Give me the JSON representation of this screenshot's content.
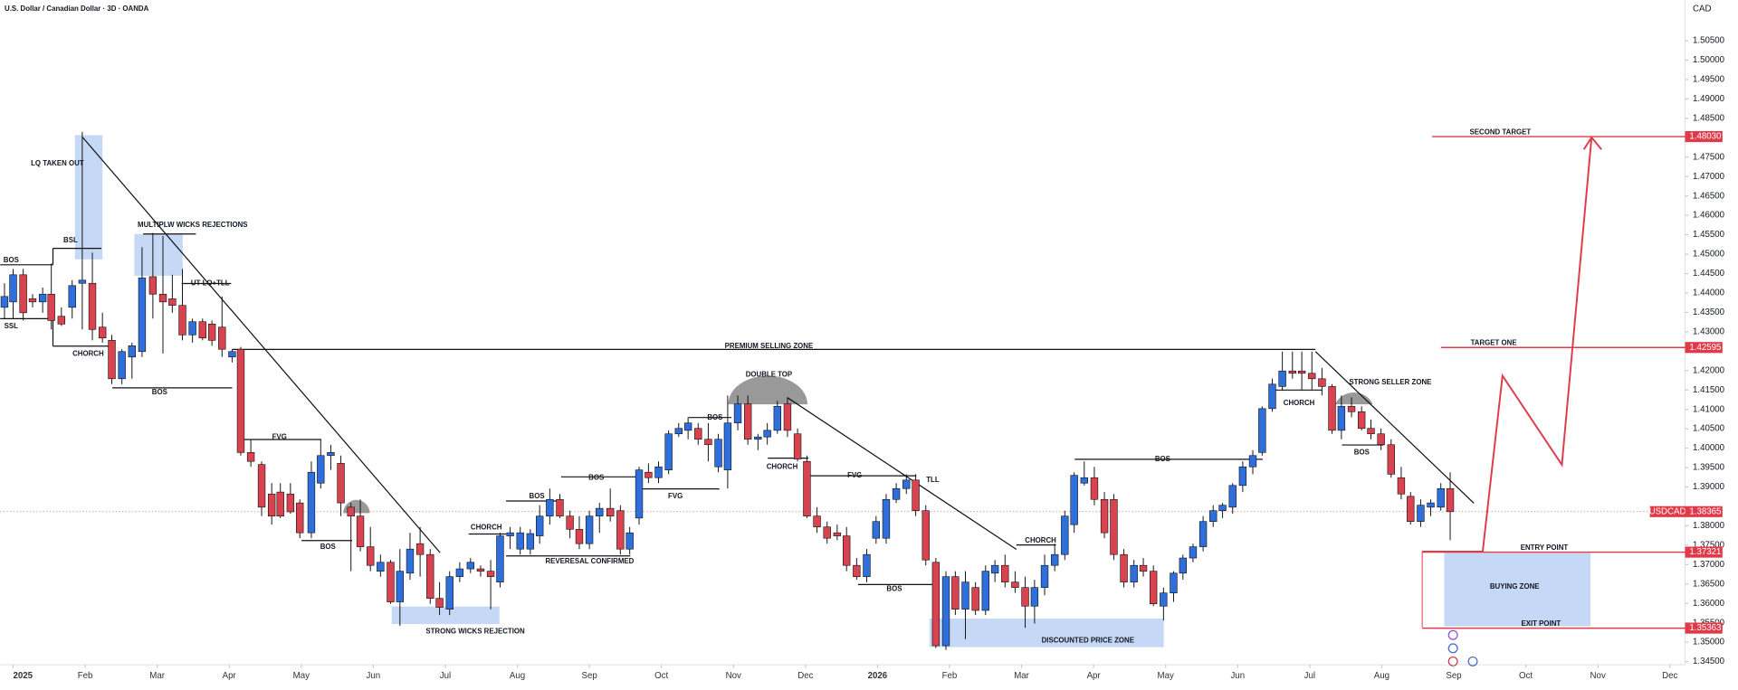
{
  "header": {
    "title": "U.S. Dollar / Canadian Dollar · 3D · OANDA",
    "currency": "CAD"
  },
  "chart_data": {
    "type": "candlestick",
    "up_color": "#2f6fdc",
    "down_color": "#d9434f",
    "xlim": [
      -0.18,
      23.18
    ],
    "xticks": [
      {
        "value": 0,
        "label": "2025"
      },
      {
        "value": 1,
        "label": "Feb"
      },
      {
        "value": 2,
        "label": "Mar"
      },
      {
        "value": 3,
        "label": "Apr"
      },
      {
        "value": 4,
        "label": "May"
      },
      {
        "value": 5,
        "label": "Jun"
      },
      {
        "value": 6,
        "label": "Jul"
      },
      {
        "value": 7,
        "label": "Aug"
      },
      {
        "value": 8,
        "label": "Sep"
      },
      {
        "value": 9,
        "label": "Oct"
      },
      {
        "value": 10,
        "label": "Nov"
      },
      {
        "value": 11,
        "label": "Dec"
      },
      {
        "value": 12,
        "label": "2026"
      },
      {
        "value": 13,
        "label": "Feb"
      },
      {
        "value": 14,
        "label": "Mar"
      },
      {
        "value": 15,
        "label": "Apr"
      },
      {
        "value": 16,
        "label": "May"
      },
      {
        "value": 17,
        "label": "Jun"
      },
      {
        "value": 18,
        "label": "Jul"
      },
      {
        "value": 19,
        "label": "Aug"
      },
      {
        "value": 20,
        "label": "Sep"
      },
      {
        "value": 21,
        "label": "Oct"
      },
      {
        "value": 22,
        "label": "Nov"
      },
      {
        "value": 23,
        "label": "Dec"
      }
    ],
    "ylim": [
      1.3442,
      1.5155
    ],
    "yticks": [
      {
        "value": 1.345,
        "label": "1.34500"
      },
      {
        "value": 1.35,
        "label": "1.35000"
      },
      {
        "value": 1.355,
        "label": "1.35500"
      },
      {
        "value": 1.36,
        "label": "1.36000"
      },
      {
        "value": 1.365,
        "label": "1.36500"
      },
      {
        "value": 1.37,
        "label": "1.37000"
      },
      {
        "value": 1.375,
        "label": "1.37500"
      },
      {
        "value": 1.38,
        "label": "1.38000"
      },
      {
        "value": 1.39,
        "label": "1.39000"
      },
      {
        "value": 1.395,
        "label": "1.39500"
      },
      {
        "value": 1.4,
        "label": "1.40000"
      },
      {
        "value": 1.405,
        "label": "1.40500"
      },
      {
        "value": 1.41,
        "label": "1.41000"
      },
      {
        "value": 1.415,
        "label": "1.41500"
      },
      {
        "value": 1.42,
        "label": "1.42000"
      },
      {
        "value": 1.43,
        "label": "1.43000"
      },
      {
        "value": 1.435,
        "label": "1.43500"
      },
      {
        "value": 1.44,
        "label": "1.44000"
      },
      {
        "value": 1.445,
        "label": "1.44500"
      },
      {
        "value": 1.45,
        "label": "1.45000"
      },
      {
        "value": 1.455,
        "label": "1.45500"
      },
      {
        "value": 1.46,
        "label": "1.46000"
      },
      {
        "value": 1.465,
        "label": "1.46500"
      },
      {
        "value": 1.47,
        "label": "1.47000"
      },
      {
        "value": 1.475,
        "label": "1.47500"
      },
      {
        "value": 1.485,
        "label": "1.48500"
      },
      {
        "value": 1.49,
        "label": "1.49000"
      },
      {
        "value": 1.495,
        "label": "1.49500"
      },
      {
        "value": 1.5,
        "label": "1.50000"
      },
      {
        "value": 1.505,
        "label": "1.50500"
      }
    ],
    "x": [
      -0.12,
      0,
      0.14,
      0.27,
      0.41,
      0.53,
      0.67,
      0.82,
      0.96,
      1.1,
      1.24,
      1.37,
      1.51,
      1.65,
      1.79,
      1.94,
      2.08,
      2.21,
      2.35,
      2.49,
      2.63,
      2.76,
      2.9,
      3.04,
      3.16,
      3.3,
      3.45,
      3.59,
      3.71,
      3.85,
      3.98,
      4.14,
      4.27,
      4.41,
      4.55,
      4.69,
      4.82,
      4.96,
      5.1,
      5.24,
      5.37,
      5.51,
      5.65,
      5.79,
      5.92,
      6.06,
      6.2,
      6.35,
      6.49,
      6.63,
      6.76,
      6.9,
      7.04,
      7.18,
      7.31,
      7.45,
      7.59,
      7.73,
      7.86,
      8,
      8.14,
      8.29,
      8.43,
      8.56,
      8.69,
      8.82,
      8.96,
      9.1,
      9.24,
      9.37,
      9.51,
      9.65,
      9.79,
      9.92,
      10.06,
      10.2,
      10.34,
      10.47,
      10.61,
      10.75,
      10.89,
      11.02,
      11.16,
      11.3,
      11.44,
      11.57,
      11.71,
      11.85,
      11.98,
      12.12,
      12.26,
      12.4,
      12.53,
      12.67,
      12.81,
      12.95,
      13.08,
      13.22,
      13.36,
      13.5,
      13.63,
      13.77,
      13.91,
      14.05,
      14.18,
      14.32,
      14.46,
      14.6,
      14.73,
      14.87,
      15.01,
      15.15,
      15.28,
      15.42,
      15.56,
      15.69,
      15.83,
      15.97,
      16.11,
      16.24,
      16.38,
      16.52,
      16.66,
      16.79,
      16.93,
      17.07,
      17.21,
      17.34,
      17.48,
      17.62,
      17.76,
      17.89,
      18.03,
      18.17,
      18.31,
      18.44,
      18.58,
      18.72,
      18.85,
      18.99,
      19.13,
      19.27,
      19.4,
      19.54,
      19.68,
      19.82,
      19.95
    ],
    "open": [
      1.4363,
      1.4377,
      1.4447,
      1.4385,
      1.4377,
      1.4397,
      1.434,
      1.4363,
      1.4425,
      1.4425,
      1.4312,
      1.4278,
      1.4179,
      1.4235,
      1.4249,
      1.4442,
      1.4397,
      1.4385,
      1.4368,
      1.4292,
      1.4326,
      1.432,
      1.4312,
      1.4235,
      1.4255,
      1.3989,
      1.3958,
      1.3882,
      1.3887,
      1.3882,
      1.3859,
      1.3782,
      1.391,
      1.3981,
      1.3961,
      1.3848,
      1.3825,
      1.3746,
      1.3683,
      1.3706,
      1.3604,
      1.3678,
      1.3754,
      1.3726,
      1.3613,
      1.3585,
      1.3669,
      1.3689,
      1.3689,
      1.3683,
      1.3655,
      1.3774,
      1.374,
      1.374,
      1.3774,
      1.3825,
      1.3868,
      1.3825,
      1.3791,
      1.3754,
      1.3825,
      1.3845,
      1.3839,
      1.374,
      1.382,
      1.3938,
      1.3924,
      1.3944,
      1.4037,
      1.4046,
      1.4051,
      1.4023,
      1.3952,
      1.3944,
      1.4065,
      1.4114,
      1.4023,
      1.4029,
      1.4046,
      1.4114,
      1.4037,
      1.3966,
      1.3825,
      1.3797,
      1.3782,
      1.3774,
      1.3698,
      1.3669,
      1.3768,
      1.3768,
      1.3868,
      1.3896,
      1.3918,
      1.3839,
      1.3706,
      1.3491,
      1.3669,
      1.3585,
      1.3641,
      1.3582,
      1.3678,
      1.3698,
      1.3655,
      1.3641,
      1.3593,
      1.3641,
      1.3698,
      1.3726,
      1.3803,
      1.391,
      1.3924,
      1.3868,
      1.3868,
      1.3726,
      1.3655,
      1.3698,
      1.3683,
      1.3593,
      1.3627,
      1.3678,
      1.3717,
      1.3746,
      1.3811,
      1.3839,
      1.3848,
      1.3904,
      1.3952,
      1.3989,
      1.4102,
      1.4159,
      1.4199,
      1.4199,
      1.4193,
      1.4179,
      1.4159,
      1.4046,
      1.4108,
      1.4094,
      1.4051,
      1.4037,
      1.4009,
      1.3924,
      1.3876,
      1.3811,
      1.3848,
      1.3848,
      1.3896
    ],
    "high": [
      1.4425,
      1.4462,
      1.4462,
      1.4397,
      1.4414,
      1.4476,
      1.4363,
      1.4433,
      1.4815,
      1.4504,
      1.4349,
      1.4292,
      1.4255,
      1.4272,
      1.4518,
      1.4555,
      1.4547,
      1.4447,
      1.4462,
      1.4334,
      1.4334,
      1.4329,
      1.4391,
      1.4255,
      1.4261,
      1.4023,
      1.3966,
      1.391,
      1.391,
      1.391,
      1.3868,
      1.3966,
      1.4023,
      1.4009,
      1.3981,
      1.3859,
      1.3868,
      1.3797,
      1.3726,
      1.3712,
      1.374,
      1.3782,
      1.3797,
      1.374,
      1.3655,
      1.3683,
      1.3706,
      1.3717,
      1.3698,
      1.3712,
      1.3782,
      1.3797,
      1.3797,
      1.3791,
      1.3853,
      1.3896,
      1.3882,
      1.3839,
      1.3825,
      1.3839,
      1.3859,
      1.3896,
      1.3853,
      1.3797,
      1.3952,
      1.3961,
      1.3966,
      1.4046,
      1.4065,
      1.408,
      1.4065,
      1.4065,
      1.4037,
      1.4136,
      1.4136,
      1.4136,
      1.4037,
      1.4065,
      1.4122,
      1.4131,
      1.4051,
      1.3981,
      1.3848,
      1.3811,
      1.3803,
      1.3797,
      1.3717,
      1.374,
      1.3825,
      1.3882,
      1.391,
      1.3933,
      1.3933,
      1.3853,
      1.3717,
      1.3683,
      1.3683,
      1.3683,
      1.3655,
      1.3698,
      1.3712,
      1.3726,
      1.3683,
      1.3669,
      1.3661,
      1.3726,
      1.3754,
      1.3839,
      1.3938,
      1.3966,
      1.3952,
      1.3887,
      1.3882,
      1.374,
      1.3712,
      1.3717,
      1.3698,
      1.3641,
      1.3683,
      1.3726,
      1.3754,
      1.3825,
      1.3853,
      1.3859,
      1.391,
      1.3966,
      1.3995,
      1.4108,
      1.4179,
      1.4249,
      1.4249,
      1.4249,
      1.4249,
      1.4207,
      1.4165,
      1.4136,
      1.4131,
      1.4108,
      1.4074,
      1.4051,
      1.4023,
      1.3952,
      1.3887,
      1.3868,
      1.3868,
      1.391,
      1.3938
    ],
    "low": [
      1.4334,
      1.4334,
      1.4329,
      1.4363,
      1.4349,
      1.4306,
      1.4315,
      1.4334,
      1.4306,
      1.4278,
      1.4272,
      1.4165,
      1.4165,
      1.4179,
      1.4235,
      1.4334,
      1.4244,
      1.4349,
      1.4278,
      1.4272,
      1.4278,
      1.4264,
      1.4235,
      1.4221,
      1.3981,
      1.3952,
      1.3825,
      1.3803,
      1.382,
      1.3831,
      1.3768,
      1.3768,
      1.3896,
      1.3944,
      1.3825,
      1.3683,
      1.3734,
      1.3683,
      1.3669,
      1.3599,
      1.3542,
      1.3661,
      1.3669,
      1.3599,
      1.357,
      1.357,
      1.3655,
      1.3678,
      1.3669,
      1.3585,
      1.3641,
      1.374,
      1.3726,
      1.3726,
      1.3754,
      1.3803,
      1.382,
      1.3768,
      1.374,
      1.374,
      1.3782,
      1.3811,
      1.3726,
      1.3726,
      1.3803,
      1.391,
      1.391,
      1.3933,
      1.4029,
      1.4023,
      1.4009,
      1.3966,
      1.3938,
      1.3896,
      1.4046,
      1.4009,
      1.3995,
      1.4009,
      1.4037,
      1.4029,
      1.3966,
      1.382,
      1.3782,
      1.3754,
      1.3763,
      1.3683,
      1.3661,
      1.3655,
      1.3754,
      1.3754,
      1.3859,
      1.3882,
      1.3825,
      1.3698,
      1.3485,
      1.348,
      1.357,
      1.3508,
      1.357,
      1.357,
      1.3655,
      1.3641,
      1.3627,
      1.3537,
      1.3548,
      1.3621,
      1.3683,
      1.3712,
      1.3782,
      1.3904,
      1.3853,
      1.3768,
      1.3712,
      1.3641,
      1.3641,
      1.3669,
      1.3593,
      1.3556,
      1.3604,
      1.3661,
      1.3706,
      1.3734,
      1.3797,
      1.382,
      1.3831,
      1.3887,
      1.3933,
      1.3981,
      1.4094,
      1.4148,
      1.4179,
      1.4151,
      1.4151,
      1.4136,
      1.4037,
      1.4023,
      1.408,
      1.4046,
      1.4023,
      1.3995,
      1.3924,
      1.3868,
      1.3803,
      1.3797,
      1.3825,
      1.3839,
      1.3763
    ],
    "close": [
      1.4391,
      1.4447,
      1.4349,
      1.4377,
      1.4397,
      1.4329,
      1.432,
      1.4419,
      1.4433,
      1.4306,
      1.4284,
      1.4179,
      1.4249,
      1.4264,
      1.4439,
      1.4397,
      1.4377,
      1.4368,
      1.4292,
      1.4326,
      1.4284,
      1.4278,
      1.4255,
      1.4249,
      1.3989,
      1.3966,
      1.3848,
      1.3825,
      1.3825,
      1.3836,
      1.3782,
      1.3938,
      1.3981,
      1.3989,
      1.3859,
      1.3825,
      1.3746,
      1.3698,
      1.3706,
      1.3604,
      1.3683,
      1.374,
      1.3726,
      1.3613,
      1.359,
      1.3669,
      1.3689,
      1.3706,
      1.3683,
      1.3669,
      1.3774,
      1.3782,
      1.3782,
      1.378,
      1.3825,
      1.3868,
      1.3825,
      1.3791,
      1.3754,
      1.3825,
      1.3845,
      1.3825,
      1.374,
      1.3782,
      1.3944,
      1.3924,
      1.3952,
      1.4037,
      1.4051,
      1.4065,
      1.4023,
      1.4009,
      1.4023,
      1.4065,
      1.4114,
      1.4023,
      1.4029,
      1.4046,
      1.4108,
      1.4046,
      1.3972,
      1.3825,
      1.3797,
      1.3768,
      1.3774,
      1.3698,
      1.3669,
      1.3726,
      1.3811,
      1.3868,
      1.3896,
      1.3918,
      1.3839,
      1.3712,
      1.3491,
      1.3669,
      1.3585,
      1.3655,
      1.3582,
      1.3683,
      1.3698,
      1.3655,
      1.3641,
      1.3593,
      1.3641,
      1.3698,
      1.3726,
      1.3825,
      1.393,
      1.3924,
      1.3868,
      1.3782,
      1.3726,
      1.3655,
      1.3698,
      1.3683,
      1.3599,
      1.3627,
      1.3678,
      1.3717,
      1.3746,
      1.3811,
      1.3839,
      1.3853,
      1.3904,
      1.3952,
      1.3981,
      1.4102,
      1.4165,
      1.4199,
      1.4193,
      1.4193,
      1.4179,
      1.4159,
      1.4046,
      1.4108,
      1.4094,
      1.4051,
      1.4037,
      1.4009,
      1.3933,
      1.3882,
      1.3811,
      1.3853,
      1.3859,
      1.3896,
      1.38365
    ],
    "current": {
      "symbol": "USDCAD",
      "value": 1.38365,
      "value_label": "1.38365"
    },
    "levels": [
      {
        "text": "SECOND TARGET",
        "value": 1.4803,
        "value_label": "1.48030"
      },
      {
        "text": "TARGET ONE",
        "value": 1.42595,
        "value_label": "1.42595"
      },
      {
        "text": "ENTRY POINT",
        "value": 1.37321,
        "value_label": "1.37321"
      },
      {
        "text": "EXIT POINT",
        "value": 1.35363,
        "value_label": "1.35363"
      }
    ],
    "annotations": [
      "LQ TAKEN OUT",
      "BSL",
      "BOS",
      "SSL",
      "CHORCH",
      "MULTIPLW WICKS REJECTIONS",
      "UT LQ+TLL",
      "BOS",
      "FVG",
      "BOS",
      "STRONG WICKS REJECTION",
      "CHORCH",
      "BOS",
      "REVERESAL CONFIRMED",
      "BOS",
      "FVG",
      "BOS",
      "DOUBLE TOP",
      "PREMIUM SELLING ZONE",
      "CHORCH",
      "FVG",
      "TLL",
      "BOS",
      "CHORCH",
      "DISCOUNTED PRICE ZONE",
      "BOS",
      "CHORCH",
      "STRONG SELLER ZONE",
      "BOS",
      "BUYING ZONE"
    ]
  }
}
